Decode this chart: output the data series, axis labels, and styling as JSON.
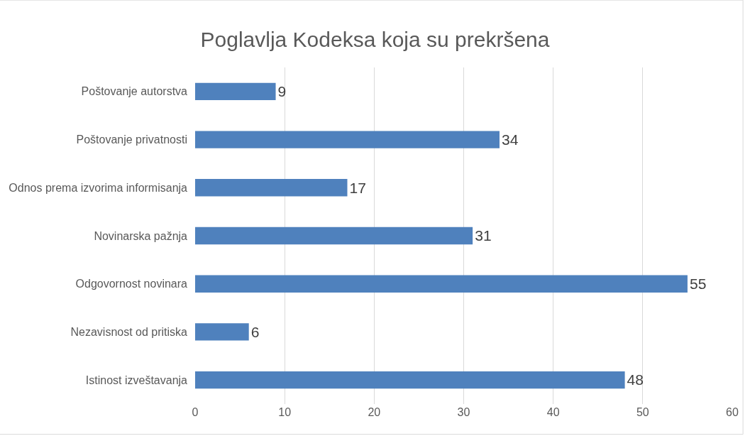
{
  "chart_data": {
    "type": "bar",
    "orientation": "horizontal",
    "title": "Poglavlja Kodeksa koja su prekršena",
    "categories": [
      "Poštovanje autorstva",
      "Poštovanje privatnosti",
      "Odnos prema izvorima informisanja",
      "Novinarska pažnja",
      "Odgovornost novinara",
      "Nezavisnost od pritiska",
      "Istinost izveštavanja"
    ],
    "values": [
      9,
      34,
      17,
      31,
      55,
      6,
      48
    ],
    "color": "#4f81bd",
    "xlim": [
      0,
      60
    ],
    "xticks": [
      0,
      10,
      20,
      30,
      40,
      50,
      60
    ],
    "grid": "x",
    "data_labels": true,
    "legend": false
  }
}
